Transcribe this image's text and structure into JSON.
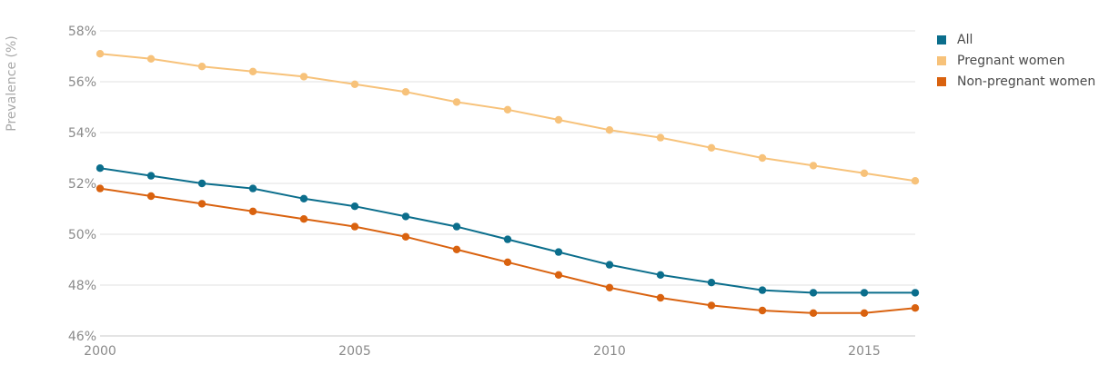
{
  "chart_data": {
    "type": "line",
    "title": "",
    "xlabel": "",
    "ylabel": "Prevalence (%)",
    "x": [
      2000,
      2001,
      2002,
      2003,
      2004,
      2005,
      2006,
      2007,
      2008,
      2009,
      2010,
      2011,
      2012,
      2013,
      2014,
      2015,
      2016
    ],
    "xlim": [
      2000,
      2016
    ],
    "ylim": [
      46,
      58
    ],
    "x_ticks": [
      2000,
      2005,
      2010,
      2015
    ],
    "y_ticks": [
      46,
      48,
      50,
      52,
      54,
      56,
      58
    ],
    "y_tick_labels": [
      "46%",
      "48%",
      "50%",
      "52%",
      "54%",
      "56%",
      "58%"
    ],
    "grid": true,
    "legend_position": "right",
    "series": [
      {
        "name": "All",
        "color": "#0b6e8c",
        "values": [
          52.6,
          52.3,
          52.0,
          51.8,
          51.4,
          51.1,
          50.7,
          50.3,
          49.8,
          49.3,
          48.8,
          48.4,
          48.1,
          47.8,
          47.7,
          47.7,
          47.7
        ]
      },
      {
        "name": "Pregnant women",
        "color": "#f7c27a",
        "values": [
          57.1,
          56.9,
          56.6,
          56.4,
          56.2,
          55.9,
          55.6,
          55.2,
          54.9,
          54.5,
          54.1,
          53.8,
          53.4,
          53.0,
          52.7,
          52.4,
          52.1
        ]
      },
      {
        "name": "Non-pregnant women",
        "color": "#d9620f",
        "values": [
          51.8,
          51.5,
          51.2,
          50.9,
          50.6,
          50.3,
          49.9,
          49.4,
          48.9,
          48.4,
          47.9,
          47.5,
          47.2,
          47.0,
          46.9,
          46.9,
          47.1
        ]
      }
    ]
  }
}
